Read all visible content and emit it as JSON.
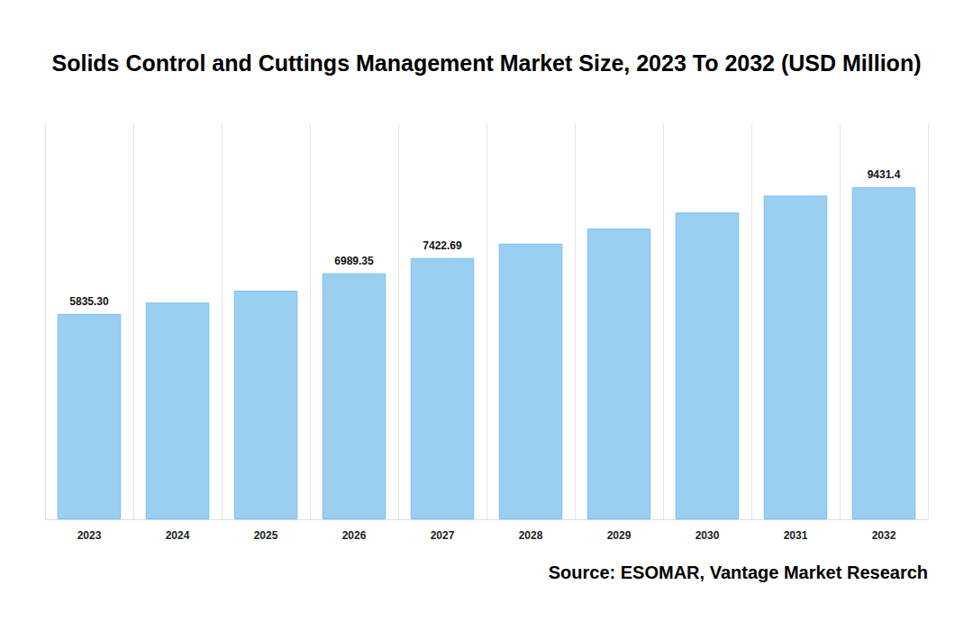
{
  "chart_data": {
    "type": "bar",
    "title": "Solids Control and Cuttings Management Market Size, 2023 To 2032 (USD Million)",
    "source": "Source: ESOMAR, Vantage Market Research",
    "categories": [
      "2023",
      "2024",
      "2025",
      "2026",
      "2027",
      "2028",
      "2029",
      "2030",
      "2031",
      "2032"
    ],
    "values": [
      5835.3,
      6156,
      6495,
      6989.35,
      7422.69,
      7830,
      8260,
      8715,
      9194,
      9431.4
    ],
    "value_labels": [
      "5835.30",
      null,
      null,
      "6989.35",
      "7422.69",
      null,
      null,
      null,
      null,
      "9431.4"
    ],
    "data_labels": true,
    "color": "#9acff2",
    "ylim": [
      0,
      11250
    ],
    "yticks": [],
    "tick_labels": "x",
    "grid": true
  }
}
